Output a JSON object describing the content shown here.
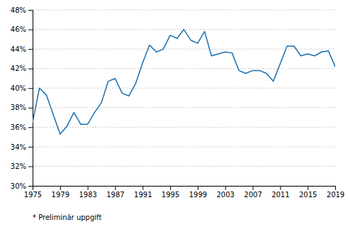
{
  "chart_data": {
    "type": "line",
    "x": [
      1975,
      1976,
      1977,
      1978,
      1979,
      1980,
      1981,
      1982,
      1983,
      1984,
      1985,
      1986,
      1987,
      1988,
      1989,
      1990,
      1991,
      1992,
      1993,
      1994,
      1995,
      1996,
      1997,
      1998,
      1999,
      2000,
      2001,
      2002,
      2003,
      2004,
      2005,
      2006,
      2007,
      2008,
      2009,
      2010,
      2011,
      2012,
      2013,
      2014,
      2015,
      2016,
      2017,
      2018,
      2019
    ],
    "values": [
      36.5,
      40.0,
      39.3,
      37.3,
      35.3,
      36.1,
      37.5,
      36.3,
      36.3,
      37.5,
      38.5,
      40.7,
      41.0,
      39.5,
      39.2,
      40.5,
      42.6,
      44.4,
      43.7,
      44.0,
      45.4,
      45.1,
      46.0,
      44.9,
      44.6,
      45.8,
      43.3,
      43.5,
      43.7,
      43.6,
      41.8,
      41.5,
      41.8,
      41.8,
      41.5,
      40.7,
      42.5,
      44.3,
      44.3,
      43.3,
      43.5,
      43.3,
      43.7,
      43.8,
      42.2
    ],
    "color": "#1a6faf",
    "xlim": [
      1975,
      2019
    ],
    "xticks": [
      1975,
      1979,
      1983,
      1987,
      1991,
      1995,
      1999,
      2003,
      2007,
      2011,
      2015,
      2019
    ],
    "ylim": [
      30,
      48
    ],
    "yticks": [
      {
        "value": 30,
        "label": "30%"
      },
      {
        "value": 32,
        "label": "32%"
      },
      {
        "value": 34,
        "label": "34%"
      },
      {
        "value": 36,
        "label": "36%"
      },
      {
        "value": 38,
        "label": "38%"
      },
      {
        "value": 40,
        "label": "40%"
      },
      {
        "value": 42,
        "label": "42%"
      },
      {
        "value": 44,
        "label": "44%"
      },
      {
        "value": 46,
        "label": "46%"
      },
      {
        "value": 48,
        "label": "48%"
      }
    ],
    "grid": true,
    "annotations": [
      "* Preliminär uppgift"
    ]
  }
}
